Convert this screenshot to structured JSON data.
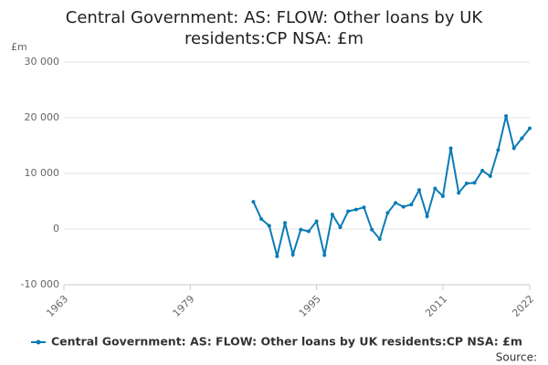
{
  "chart_data": {
    "type": "line",
    "title": "Central Government: AS: FLOW: Other loans by UK residents:CP NSA: £m",
    "y_unit": "£m",
    "source": "Source:",
    "x": [
      1987,
      1988,
      1989,
      1990,
      1991,
      1992,
      1993,
      1994,
      1995,
      1996,
      1997,
      1998,
      1999,
      2000,
      2001,
      2002,
      2003,
      2004,
      2005,
      2006,
      2007,
      2008,
      2009,
      2010,
      2011,
      2012,
      2013,
      2014,
      2015,
      2016,
      2017,
      2018,
      2019,
      2020,
      2021,
      2022
    ],
    "series": [
      {
        "name": "Central Government: AS: FLOW: Other loans by UK residents:CP NSA: £m",
        "color": "#0b7bb5",
        "values": [
          4900,
          1800,
          600,
          -4900,
          1100,
          -4600,
          -100,
          -400,
          1400,
          -4700,
          2600,
          300,
          3200,
          3500,
          3900,
          -100,
          -1800,
          2900,
          4700,
          4000,
          4400,
          7000,
          2300,
          7300,
          5900,
          14500,
          6500,
          8200,
          8300,
          10500,
          9500,
          14200,
          20300,
          14500,
          16300,
          18100
        ]
      }
    ],
    "xlim": [
      1963,
      2022
    ],
    "xticks": [
      1963,
      1979,
      1995,
      2011,
      2022
    ],
    "ylim": [
      -10000,
      30000
    ],
    "yticks": [
      {
        "value": -10000,
        "label": "-10 000"
      },
      0,
      {
        "value": 10000,
        "label": "10 000"
      },
      {
        "value": 20000,
        "label": "20 000"
      },
      {
        "value": 30000,
        "label": "30 000"
      }
    ],
    "grid": true
  }
}
